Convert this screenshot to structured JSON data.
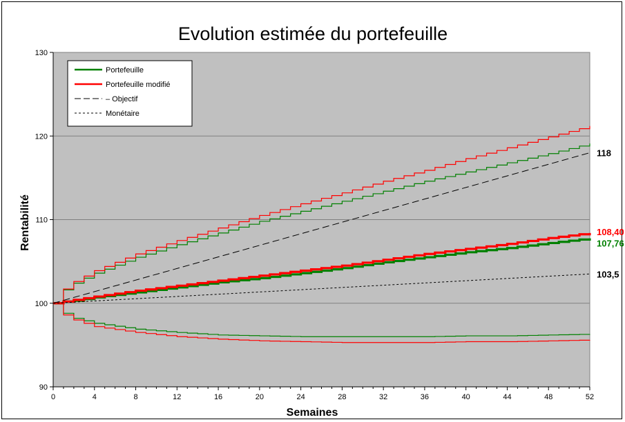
{
  "chart_data": {
    "type": "line",
    "title": "Evolution estimée du portefeuille",
    "xlabel": "Semaines",
    "ylabel": "Rentabilité",
    "xlim": [
      0,
      52
    ],
    "ylim": [
      90,
      130
    ],
    "x_ticks": [
      0,
      4,
      8,
      12,
      16,
      20,
      24,
      28,
      32,
      36,
      40,
      44,
      48,
      52
    ],
    "y_ticks": [
      90,
      100,
      110,
      120,
      130
    ],
    "grid": true,
    "legend_position": "top-left",
    "legend": [
      {
        "label": "Portefeuille",
        "color": "#008000",
        "style": "solid"
      },
      {
        "label": "Portefeuille modifié",
        "color": "#ff0000",
        "style": "solid"
      },
      {
        "label": "– Objectif",
        "color": "#000000",
        "style": "dashed"
      },
      {
        "label": "Monétaire",
        "color": "#000000",
        "style": "dotted"
      }
    ],
    "series": [
      {
        "name": "Portefeuille",
        "color": "#008000",
        "style": "solid-thick",
        "x": [
          0,
          1,
          2,
          4,
          8,
          12,
          16,
          20,
          24,
          28,
          32,
          36,
          40,
          44,
          48,
          52
        ],
        "values": [
          100,
          100.2,
          100.3,
          100.7,
          101.3,
          101.9,
          102.5,
          103.0,
          103.6,
          104.2,
          104.9,
          105.5,
          106.1,
          106.6,
          107.2,
          107.76
        ]
      },
      {
        "name": "Portefeuille modifié",
        "color": "#ff0000",
        "style": "solid-thick",
        "x": [
          0,
          1,
          2,
          4,
          8,
          12,
          16,
          20,
          24,
          28,
          32,
          36,
          40,
          44,
          48,
          52
        ],
        "values": [
          100,
          100.2,
          100.4,
          100.8,
          101.5,
          102.1,
          102.7,
          103.3,
          103.9,
          104.5,
          105.2,
          105.9,
          106.5,
          107.1,
          107.8,
          108.4
        ]
      },
      {
        "name": "",
        "color": "#008000",
        "style": "solid-thin",
        "x": [
          0,
          1,
          2,
          4,
          8,
          12,
          16,
          20,
          24,
          28,
          32,
          36,
          40,
          44,
          48,
          52
        ],
        "values": [
          100,
          101.6,
          102.4,
          103.6,
          105.5,
          107.0,
          108.4,
          109.8,
          111.0,
          112.2,
          113.4,
          114.6,
          115.7,
          116.8,
          117.9,
          119.1
        ]
      },
      {
        "name": "",
        "color": "#ff0000",
        "style": "solid-thin",
        "x": [
          0,
          1,
          2,
          4,
          8,
          12,
          16,
          20,
          24,
          28,
          32,
          36,
          40,
          44,
          48,
          52
        ],
        "values": [
          100,
          101.7,
          102.6,
          103.9,
          105.9,
          107.5,
          109.0,
          110.5,
          111.9,
          113.2,
          114.6,
          115.9,
          117.3,
          118.6,
          119.9,
          121.2
        ]
      },
      {
        "name": "",
        "color": "#008000",
        "style": "solid-thin",
        "x": [
          0,
          1,
          2,
          4,
          8,
          12,
          16,
          20,
          24,
          28,
          32,
          36,
          40,
          44,
          48,
          52
        ],
        "values": [
          100,
          98.8,
          98.2,
          97.6,
          96.9,
          96.5,
          96.2,
          96.1,
          96.0,
          96.0,
          96.0,
          96.0,
          96.1,
          96.1,
          96.2,
          96.3
        ]
      },
      {
        "name": "",
        "color": "#ff0000",
        "style": "solid-thin",
        "x": [
          0,
          1,
          2,
          4,
          8,
          12,
          16,
          20,
          24,
          28,
          32,
          36,
          40,
          44,
          48,
          52
        ],
        "values": [
          100,
          98.6,
          98.0,
          97.2,
          96.5,
          96.0,
          95.7,
          95.5,
          95.4,
          95.3,
          95.3,
          95.3,
          95.4,
          95.4,
          95.5,
          95.6
        ]
      },
      {
        "name": "Objectif",
        "color": "#000000",
        "style": "dashed",
        "x": [
          0,
          52
        ],
        "values": [
          100,
          118
        ]
      },
      {
        "name": "Monétaire",
        "color": "#000000",
        "style": "dotted",
        "x": [
          0,
          52
        ],
        "values": [
          100,
          103.5
        ]
      }
    ],
    "end_labels": [
      {
        "text": "118",
        "value": 118,
        "color": "#000000"
      },
      {
        "text": "108,40",
        "value": 108.4,
        "color": "#ff0000"
      },
      {
        "text": "107,76",
        "value": 107.76,
        "color": "#008000"
      },
      {
        "text": "103,5",
        "value": 103.5,
        "color": "#000000"
      }
    ],
    "plot_background": "#c0c0c0",
    "gridline_color": "#808080"
  }
}
